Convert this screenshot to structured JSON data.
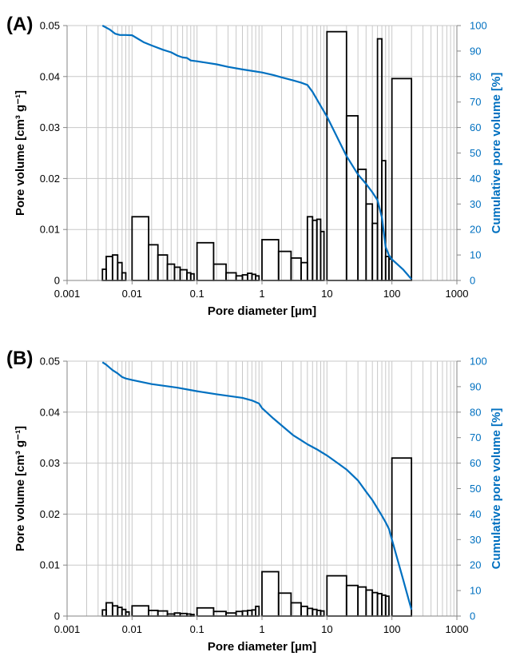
{
  "chart_data": [
    {
      "panel_label": "(A)",
      "type": "bar+line",
      "xlabel": "Pore diameter [µm]",
      "ylabel": "Pore volume [cm³ g⁻¹]",
      "y2label": "Cumulative pore volume [%]",
      "xscale": "log",
      "xlim": [
        0.001,
        1000
      ],
      "ylim": [
        0,
        0.05
      ],
      "y2lim": [
        0,
        100
      ],
      "grid": true,
      "x_ticks": [
        "0.001",
        "0.01",
        "0.1",
        "1",
        "10",
        "100",
        "1000"
      ],
      "y_ticks": [
        "0",
        "0.01",
        "0.02",
        "0.03",
        "0.04",
        "0.05"
      ],
      "y2_ticks": [
        "0",
        "10",
        "20",
        "30",
        "40",
        "50",
        "60",
        "70",
        "80",
        "90",
        "100"
      ],
      "bars": [
        {
          "x0": 0.0035,
          "x1": 0.004,
          "value": 0.0022
        },
        {
          "x0": 0.004,
          "x1": 0.005,
          "value": 0.0047
        },
        {
          "x0": 0.005,
          "x1": 0.006,
          "value": 0.005
        },
        {
          "x0": 0.006,
          "x1": 0.007,
          "value": 0.0035
        },
        {
          "x0": 0.007,
          "x1": 0.008,
          "value": 0.0015
        },
        {
          "x0": 0.01,
          "x1": 0.018,
          "value": 0.0125
        },
        {
          "x0": 0.018,
          "x1": 0.025,
          "value": 0.007
        },
        {
          "x0": 0.025,
          "x1": 0.035,
          "value": 0.005
        },
        {
          "x0": 0.035,
          "x1": 0.045,
          "value": 0.0032
        },
        {
          "x0": 0.045,
          "x1": 0.055,
          "value": 0.0026
        },
        {
          "x0": 0.055,
          "x1": 0.07,
          "value": 0.0021
        },
        {
          "x0": 0.07,
          "x1": 0.08,
          "value": 0.0015
        },
        {
          "x0": 0.08,
          "x1": 0.09,
          "value": 0.0013
        },
        {
          "x0": 0.1,
          "x1": 0.18,
          "value": 0.0074
        },
        {
          "x0": 0.18,
          "x1": 0.28,
          "value": 0.0032
        },
        {
          "x0": 0.28,
          "x1": 0.4,
          "value": 0.0015
        },
        {
          "x0": 0.4,
          "x1": 0.5,
          "value": 0.0009
        },
        {
          "x0": 0.5,
          "x1": 0.6,
          "value": 0.0011
        },
        {
          "x0": 0.6,
          "x1": 0.7,
          "value": 0.0014
        },
        {
          "x0": 0.7,
          "x1": 0.8,
          "value": 0.0012
        },
        {
          "x0": 0.8,
          "x1": 0.9,
          "value": 0.0009
        },
        {
          "x0": 1.0,
          "x1": 1.8,
          "value": 0.008
        },
        {
          "x0": 1.8,
          "x1": 2.8,
          "value": 0.0057
        },
        {
          "x0": 2.8,
          "x1": 4.0,
          "value": 0.0044
        },
        {
          "x0": 4.0,
          "x1": 5.0,
          "value": 0.0035
        },
        {
          "x0": 5.0,
          "x1": 6.0,
          "value": 0.0125
        },
        {
          "x0": 6.0,
          "x1": 7.0,
          "value": 0.0118
        },
        {
          "x0": 7.0,
          "x1": 8.0,
          "value": 0.012
        },
        {
          "x0": 8.0,
          "x1": 9.0,
          "value": 0.0096
        },
        {
          "x0": 10,
          "x1": 20,
          "value": 0.0488
        },
        {
          "x0": 20,
          "x1": 30,
          "value": 0.0323
        },
        {
          "x0": 30,
          "x1": 40,
          "value": 0.0218
        },
        {
          "x0": 40,
          "x1": 50,
          "value": 0.015
        },
        {
          "x0": 50,
          "x1": 60,
          "value": 0.0112
        },
        {
          "x0": 60,
          "x1": 70,
          "value": 0.0474
        },
        {
          "x0": 70,
          "x1": 80,
          "value": 0.0235
        },
        {
          "x0": 80,
          "x1": 90,
          "value": 0.0047
        },
        {
          "x0": 90,
          "x1": 100,
          "value": 0.0042
        },
        {
          "x0": 100,
          "x1": 200,
          "value": 0.0396
        }
      ],
      "cumulative_line": {
        "x": [
          0.0035,
          0.0045,
          0.0055,
          0.0065,
          0.008,
          0.01,
          0.015,
          0.02,
          0.03,
          0.04,
          0.05,
          0.06,
          0.07,
          0.08,
          0.1,
          0.2,
          0.3,
          0.5,
          1,
          1.5,
          2,
          3,
          4,
          5,
          6,
          8,
          10,
          20,
          30,
          40,
          50,
          60,
          70,
          80,
          90,
          100,
          150,
          200
        ],
        "y": [
          100,
          98.5,
          96.8,
          96.3,
          96.3,
          96.2,
          93.5,
          92.2,
          90.5,
          89.5,
          88.2,
          87.5,
          87.3,
          86.3,
          86,
          84.8,
          83.8,
          82.8,
          81.6,
          80.6,
          79.7,
          78.5,
          77.6,
          76.7,
          74,
          68.5,
          64.3,
          48.8,
          41.6,
          37.9,
          34.6,
          31.5,
          24.8,
          13.2,
          9.9,
          8.3,
          4.2,
          0.5
        ]
      }
    },
    {
      "panel_label": "(B)",
      "type": "bar+line",
      "xlabel": "Pore diameter [µm]",
      "ylabel": "Pore volume [cm³ g⁻¹]",
      "y2label": "Cumulative pore volume [%]",
      "xscale": "log",
      "xlim": [
        0.001,
        1000
      ],
      "ylim": [
        0,
        0.05
      ],
      "y2lim": [
        0,
        100
      ],
      "grid": true,
      "x_ticks": [
        "0.001",
        "0.01",
        "0.1",
        "1",
        "10",
        "100",
        "1000"
      ],
      "y_ticks": [
        "0",
        "0.01",
        "0.02",
        "0.03",
        "0.04",
        "0.05"
      ],
      "y2_ticks": [
        "0",
        "10",
        "20",
        "30",
        "40",
        "50",
        "60",
        "70",
        "80",
        "90",
        "100"
      ],
      "bars": [
        {
          "x0": 0.0035,
          "x1": 0.004,
          "value": 0.0012
        },
        {
          "x0": 0.004,
          "x1": 0.005,
          "value": 0.0026
        },
        {
          "x0": 0.005,
          "x1": 0.006,
          "value": 0.002
        },
        {
          "x0": 0.006,
          "x1": 0.007,
          "value": 0.0017
        },
        {
          "x0": 0.007,
          "x1": 0.008,
          "value": 0.0013
        },
        {
          "x0": 0.008,
          "x1": 0.009,
          "value": 0.0008
        },
        {
          "x0": 0.01,
          "x1": 0.018,
          "value": 0.002
        },
        {
          "x0": 0.018,
          "x1": 0.025,
          "value": 0.0011
        },
        {
          "x0": 0.025,
          "x1": 0.035,
          "value": 0.001
        },
        {
          "x0": 0.035,
          "x1": 0.045,
          "value": 0.0004
        },
        {
          "x0": 0.045,
          "x1": 0.055,
          "value": 0.0006
        },
        {
          "x0": 0.055,
          "x1": 0.07,
          "value": 0.0005
        },
        {
          "x0": 0.07,
          "x1": 0.08,
          "value": 0.0004
        },
        {
          "x0": 0.08,
          "x1": 0.09,
          "value": 0.0003
        },
        {
          "x0": 0.1,
          "x1": 0.18,
          "value": 0.0016
        },
        {
          "x0": 0.18,
          "x1": 0.28,
          "value": 0.0009
        },
        {
          "x0": 0.28,
          "x1": 0.4,
          "value": 0.0006
        },
        {
          "x0": 0.4,
          "x1": 0.5,
          "value": 0.0009
        },
        {
          "x0": 0.5,
          "x1": 0.6,
          "value": 0.001
        },
        {
          "x0": 0.6,
          "x1": 0.7,
          "value": 0.0011
        },
        {
          "x0": 0.7,
          "x1": 0.8,
          "value": 0.0012
        },
        {
          "x0": 0.8,
          "x1": 0.9,
          "value": 0.0019
        },
        {
          "x0": 1.0,
          "x1": 1.8,
          "value": 0.0087
        },
        {
          "x0": 1.8,
          "x1": 2.8,
          "value": 0.0045
        },
        {
          "x0": 2.8,
          "x1": 4.0,
          "value": 0.0026
        },
        {
          "x0": 4.0,
          "x1": 5.0,
          "value": 0.0019
        },
        {
          "x0": 5.0,
          "x1": 6.0,
          "value": 0.0015
        },
        {
          "x0": 6.0,
          "x1": 7.0,
          "value": 0.0013
        },
        {
          "x0": 7.0,
          "x1": 8.0,
          "value": 0.0011
        },
        {
          "x0": 8.0,
          "x1": 9.0,
          "value": 0.001
        },
        {
          "x0": 10,
          "x1": 20,
          "value": 0.0079
        },
        {
          "x0": 20,
          "x1": 30,
          "value": 0.006
        },
        {
          "x0": 30,
          "x1": 40,
          "value": 0.0057
        },
        {
          "x0": 40,
          "x1": 50,
          "value": 0.0051
        },
        {
          "x0": 50,
          "x1": 60,
          "value": 0.0046
        },
        {
          "x0": 60,
          "x1": 70,
          "value": 0.0044
        },
        {
          "x0": 70,
          "x1": 80,
          "value": 0.0041
        },
        {
          "x0": 80,
          "x1": 90,
          "value": 0.0039
        },
        {
          "x0": 100,
          "x1": 200,
          "value": 0.031
        }
      ],
      "cumulative_line": {
        "x": [
          0.0035,
          0.004,
          0.005,
          0.006,
          0.007,
          0.008,
          0.01,
          0.02,
          0.05,
          0.1,
          0.2,
          0.5,
          0.7,
          0.9,
          1,
          1.5,
          2,
          3,
          4,
          5,
          7,
          8,
          10,
          15,
          20,
          30,
          40,
          50,
          60,
          70,
          80,
          90,
          100,
          150,
          200
        ],
        "y": [
          99.6,
          98.6,
          96.5,
          95.2,
          93.8,
          93.2,
          92.6,
          91,
          89.6,
          88.2,
          87,
          85.6,
          84.6,
          83.4,
          81.6,
          77.5,
          74.8,
          71,
          69,
          67.4,
          65.4,
          64.5,
          63,
          59.8,
          57.5,
          53.2,
          48.8,
          45.5,
          42.2,
          39.4,
          36.8,
          34.2,
          30,
          14,
          2.5
        ]
      }
    }
  ],
  "style": {
    "bar_stroke": "#000000",
    "line_color": "#0070C0",
    "grid_color": "#C8C8C8",
    "axis_color": "#868686"
  }
}
